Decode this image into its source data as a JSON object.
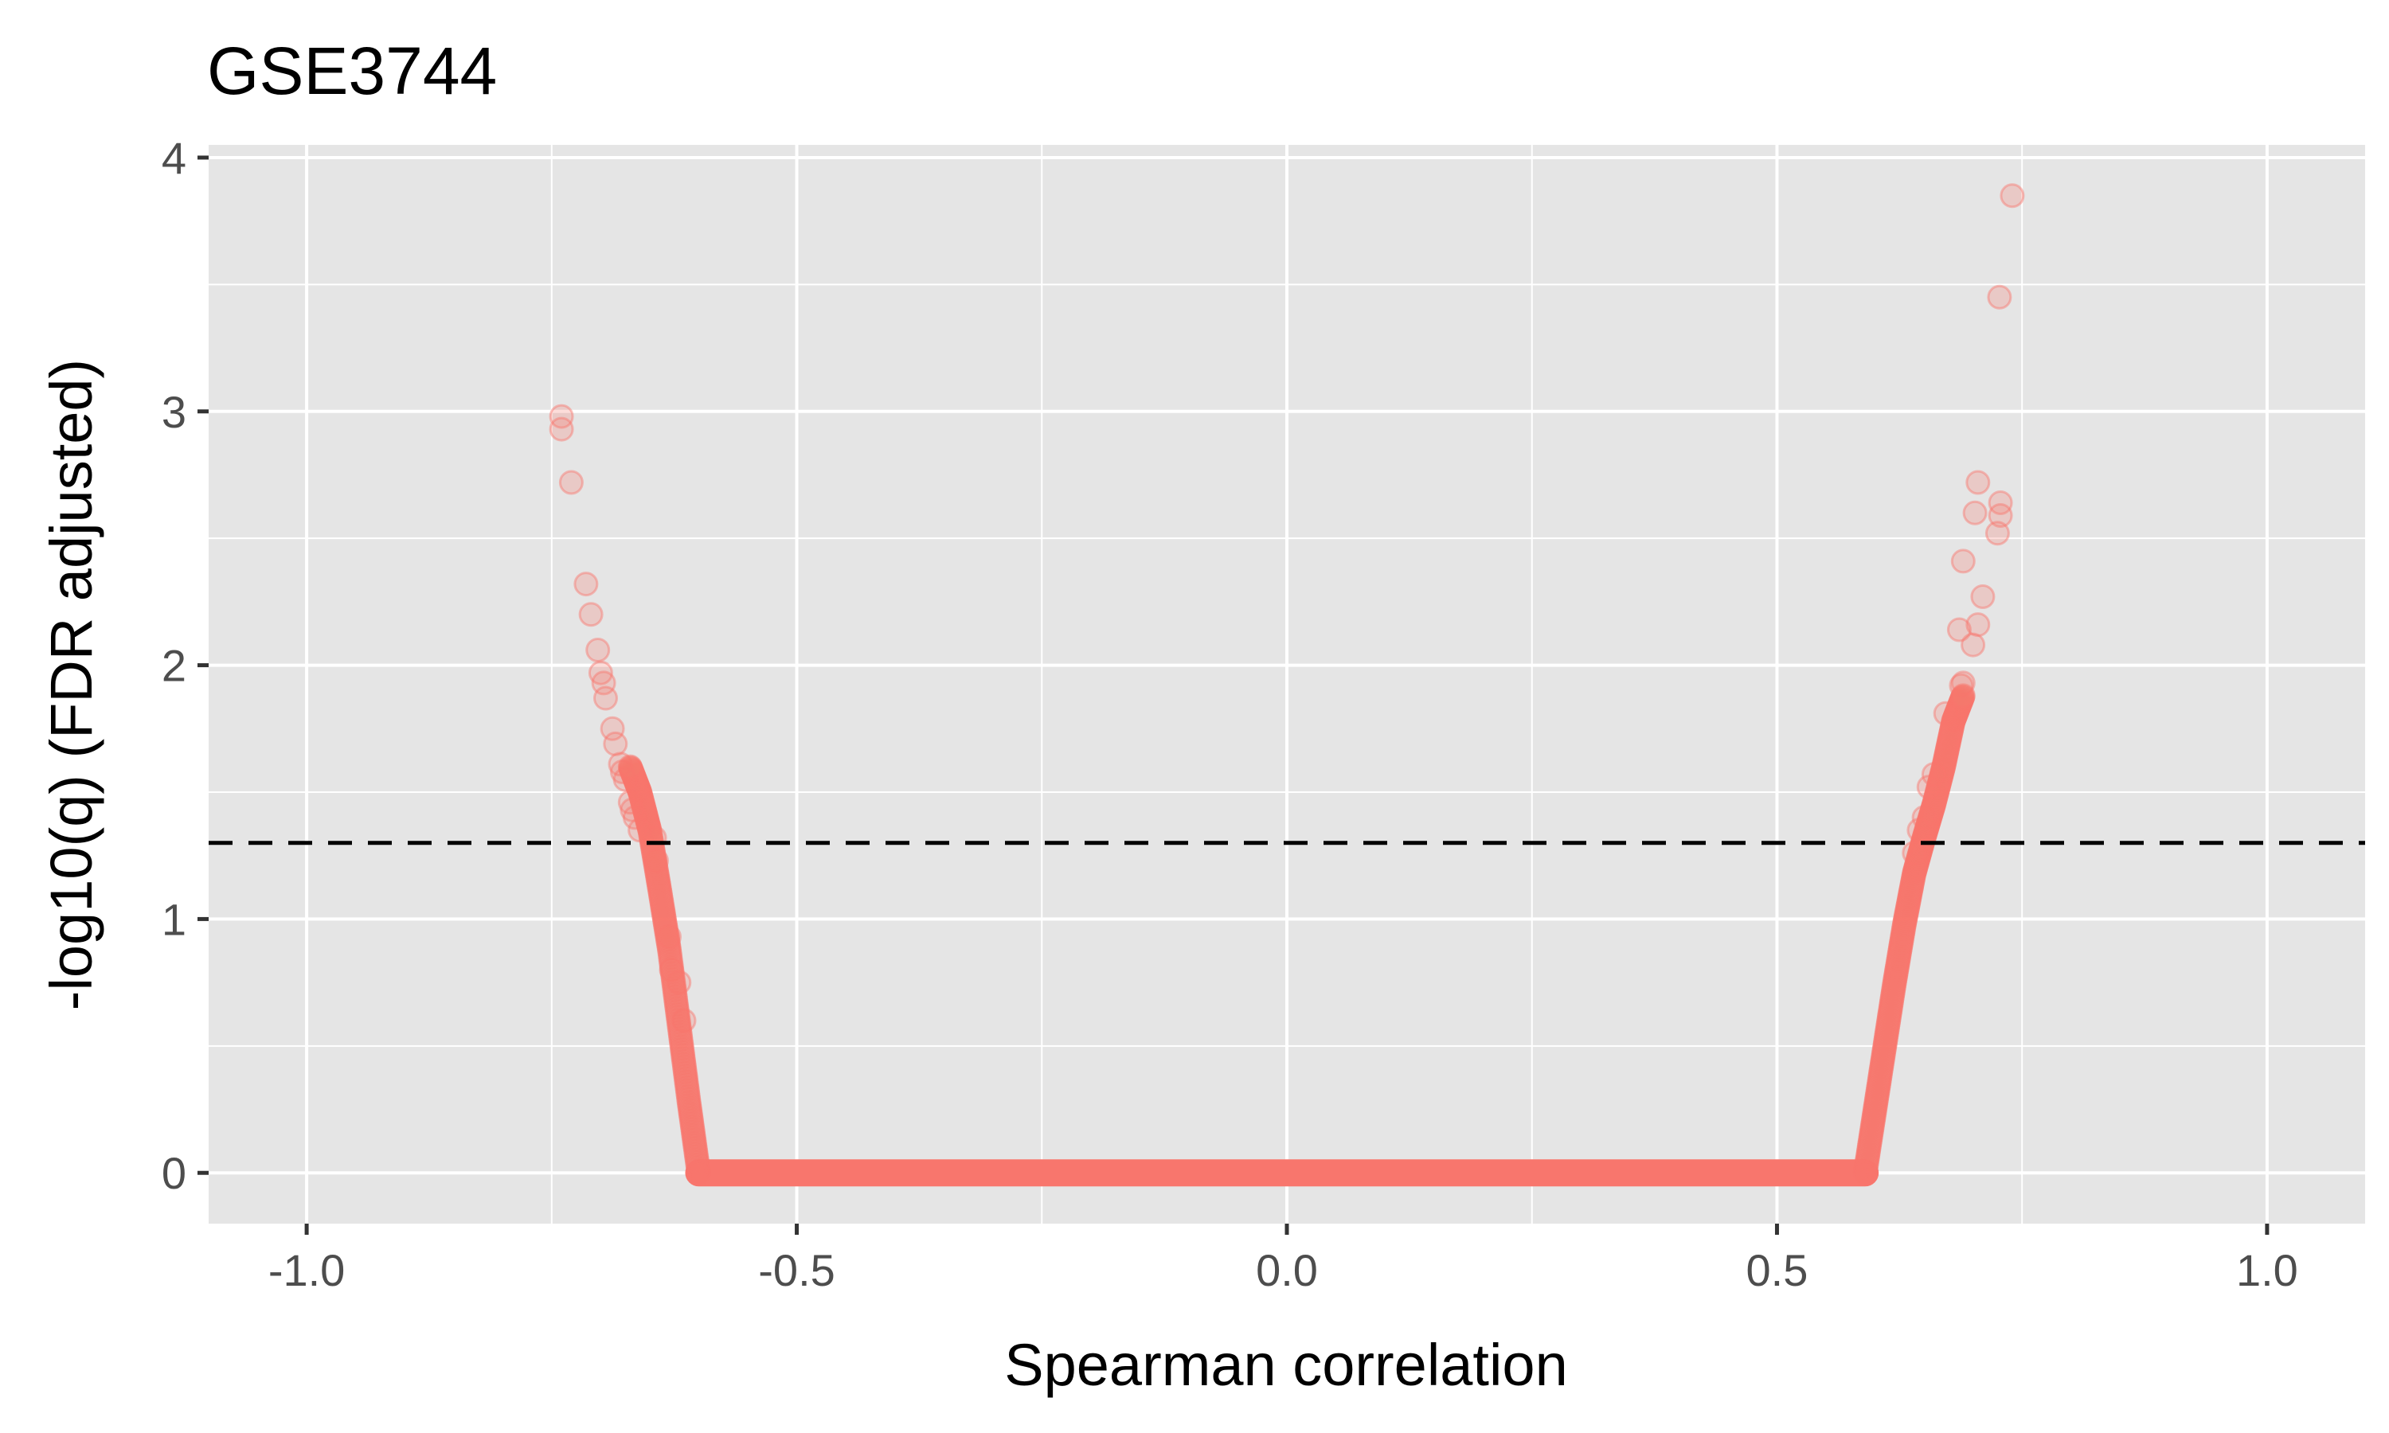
{
  "chart_data": {
    "type": "scatter",
    "title": "GSE3744",
    "xlabel": "Spearman correlation",
    "ylabel": "-log10(q) (FDR adjusted)",
    "xlim": [
      -1.1,
      1.1
    ],
    "ylim": [
      -0.2,
      4.05
    ],
    "x_ticks": [
      -1.0,
      -0.5,
      0.0,
      0.5,
      1.0
    ],
    "x_tick_labels": [
      "-1.0",
      "-0.5",
      "0.0",
      "0.5",
      "1.0"
    ],
    "y_ticks": [
      0,
      1,
      2,
      3,
      4
    ],
    "y_tick_labels": [
      "0",
      "1",
      "2",
      "3",
      "4"
    ],
    "grid": true,
    "panel_background": "#e5e5e5",
    "grid_color": "#ffffff",
    "point_color": "#f8766d",
    "point_opacity": 0.25,
    "reference_line": {
      "y": 1.3,
      "style": "dashed",
      "color": "#000000"
    },
    "outliers": [
      {
        "x": -0.74,
        "y": 2.98
      },
      {
        "x": -0.74,
        "y": 2.93
      },
      {
        "x": -0.73,
        "y": 2.72
      },
      {
        "x": -0.715,
        "y": 2.32
      },
      {
        "x": -0.71,
        "y": 2.2
      },
      {
        "x": -0.703,
        "y": 2.06
      },
      {
        "x": -0.7,
        "y": 1.97
      },
      {
        "x": -0.697,
        "y": 1.93
      },
      {
        "x": -0.695,
        "y": 1.87
      },
      {
        "x": -0.688,
        "y": 1.75
      },
      {
        "x": -0.685,
        "y": 1.69
      },
      {
        "x": -0.68,
        "y": 1.61
      },
      {
        "x": -0.678,
        "y": 1.58
      },
      {
        "x": -0.675,
        "y": 1.55
      },
      {
        "x": -0.67,
        "y": 1.46
      },
      {
        "x": -0.668,
        "y": 1.43
      },
      {
        "x": -0.665,
        "y": 1.4
      },
      {
        "x": -0.66,
        "y": 1.35
      },
      {
        "x": -0.645,
        "y": 1.32
      },
      {
        "x": -0.643,
        "y": 1.23
      },
      {
        "x": -0.63,
        "y": 0.93
      },
      {
        "x": -0.628,
        "y": 0.8
      },
      {
        "x": -0.62,
        "y": 0.75
      },
      {
        "x": -0.615,
        "y": 0.6
      },
      {
        "x": 0.74,
        "y": 3.85
      },
      {
        "x": 0.727,
        "y": 3.45
      },
      {
        "x": 0.728,
        "y": 2.64
      },
      {
        "x": 0.728,
        "y": 2.59
      },
      {
        "x": 0.725,
        "y": 2.52
      },
      {
        "x": 0.705,
        "y": 2.72
      },
      {
        "x": 0.702,
        "y": 2.6
      },
      {
        "x": 0.7,
        "y": 2.08
      },
      {
        "x": 0.71,
        "y": 2.27
      },
      {
        "x": 0.705,
        "y": 2.16
      },
      {
        "x": 0.69,
        "y": 2.41
      },
      {
        "x": 0.686,
        "y": 2.14
      },
      {
        "x": 0.69,
        "y": 1.93
      },
      {
        "x": 0.688,
        "y": 1.92
      },
      {
        "x": 0.672,
        "y": 1.81
      },
      {
        "x": 0.66,
        "y": 1.57
      },
      {
        "x": 0.655,
        "y": 1.52
      },
      {
        "x": 0.65,
        "y": 1.4
      },
      {
        "x": 0.645,
        "y": 1.35
      },
      {
        "x": 0.64,
        "y": 1.26
      }
    ],
    "left_arm": [
      {
        "x": -0.6,
        "y": 0.0
      },
      {
        "x": -0.61,
        "y": 0.28
      },
      {
        "x": -0.62,
        "y": 0.58
      },
      {
        "x": -0.63,
        "y": 0.88
      },
      {
        "x": -0.64,
        "y": 1.12
      },
      {
        "x": -0.65,
        "y": 1.35
      },
      {
        "x": -0.66,
        "y": 1.5
      },
      {
        "x": -0.67,
        "y": 1.6
      }
    ],
    "right_arm": [
      {
        "x": 0.59,
        "y": 0.0
      },
      {
        "x": 0.6,
        "y": 0.25
      },
      {
        "x": 0.61,
        "y": 0.5
      },
      {
        "x": 0.62,
        "y": 0.75
      },
      {
        "x": 0.63,
        "y": 0.98
      },
      {
        "x": 0.64,
        "y": 1.18
      },
      {
        "x": 0.65,
        "y": 1.32
      },
      {
        "x": 0.66,
        "y": 1.45
      },
      {
        "x": 0.67,
        "y": 1.6
      },
      {
        "x": 0.68,
        "y": 1.78
      },
      {
        "x": 0.69,
        "y": 1.88
      }
    ],
    "flat_segment": {
      "x_from": -0.6,
      "x_to": 0.59,
      "y": 0.0
    }
  }
}
